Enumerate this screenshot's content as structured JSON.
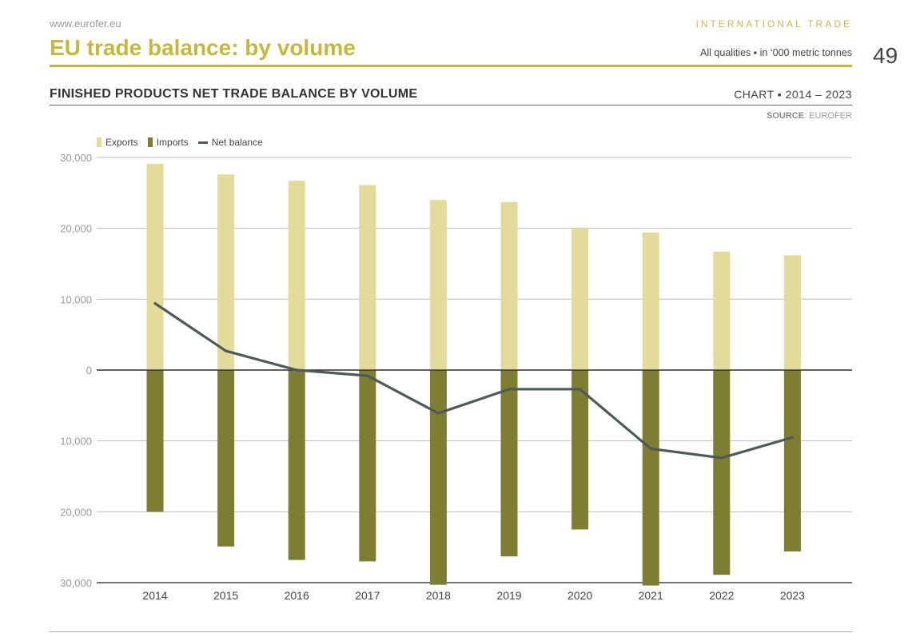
{
  "header": {
    "site": "www.eurofer.eu",
    "section": "INTERNATIONAL TRADE",
    "title": "EU trade balance: by volume",
    "subtitle": "All qualities ▪ in ‘000 metric tonnes",
    "page_number": "49"
  },
  "chart_header": {
    "title": "FINISHED PRODUCTS NET TRADE BALANCE BY VOLUME",
    "range": "CHART ▪ 2014 – 2023",
    "source_label": "SOURCE",
    "source_value": ": EUROFER"
  },
  "colors": {
    "exports": "#e2db9a",
    "imports": "#7e7e33",
    "net": "#4f5a58",
    "accent": "#c5b83b"
  },
  "chart_data": {
    "type": "bar",
    "categories": [
      "2014",
      "2015",
      "2016",
      "2017",
      "2018",
      "2019",
      "2020",
      "2021",
      "2022",
      "2023"
    ],
    "series": [
      {
        "name": "Exports",
        "type": "bar",
        "values": [
          29100,
          27600,
          26700,
          26100,
          24000,
          23700,
          20000,
          19400,
          16700,
          16200
        ]
      },
      {
        "name": "Imports",
        "type": "bar",
        "values": [
          -20000,
          -24900,
          -26800,
          -27000,
          -30300,
          -26300,
          -22500,
          -30400,
          -28900,
          -25600
        ]
      },
      {
        "name": "Net balance",
        "type": "line",
        "values": [
          9400,
          2700,
          0,
          -800,
          -6100,
          -2700,
          -2700,
          -11100,
          -12400,
          -9500
        ]
      }
    ],
    "ylim": [
      -30000,
      30000
    ],
    "yticks": [
      30000,
      20000,
      10000,
      0,
      -10000,
      -20000,
      -30000
    ],
    "ytick_labels": [
      "30,000",
      "20,000",
      "10,000",
      "0",
      "10,000",
      "20,000",
      "30,000"
    ],
    "legend_position": "top-left",
    "grid": true
  }
}
